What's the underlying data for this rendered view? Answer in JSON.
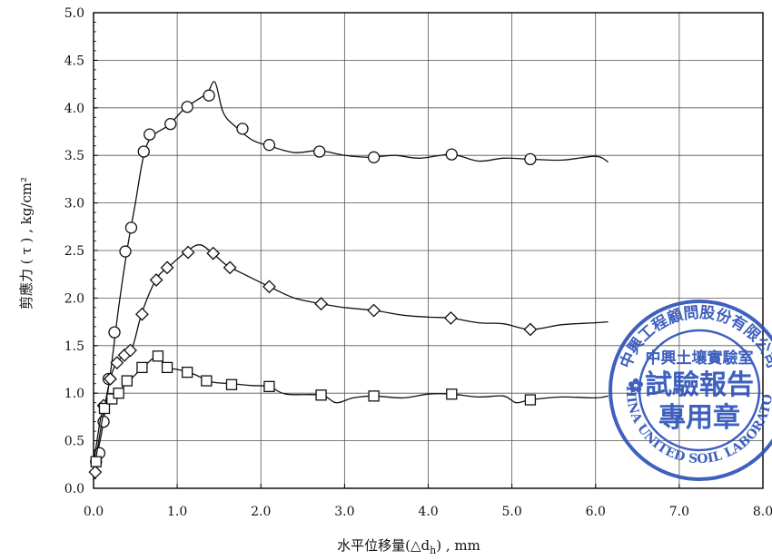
{
  "chart_data": {
    "type": "line",
    "title": "",
    "xlabel": "水平位移量(△d",
    "xlabel_sub": "h",
    "xlabel_suffix": ") , mm",
    "ylabel": "剪應力 ( τ ) ,  kg/cm²",
    "xlim": [
      0,
      8
    ],
    "ylim": [
      0,
      5
    ],
    "x_ticks": [
      "0.0",
      "1.0",
      "2.0",
      "3.0",
      "4.0",
      "5.0",
      "6.0",
      "7.0",
      "8.0"
    ],
    "y_ticks": [
      "0.0",
      "0.5",
      "1.0",
      "1.5",
      "2.0",
      "2.5",
      "3.0",
      "3.5",
      "4.0",
      "4.5",
      "5.0"
    ],
    "grid": true,
    "series": [
      {
        "marker": "circle",
        "points": [
          [
            0.03,
            0.28
          ],
          [
            0.07,
            0.37
          ],
          [
            0.12,
            0.7
          ],
          [
            0.18,
            1.15
          ],
          [
            0.25,
            1.64
          ],
          [
            0.38,
            2.49
          ],
          [
            0.45,
            2.74
          ],
          [
            0.6,
            3.54
          ],
          [
            0.67,
            3.72
          ],
          [
            0.92,
            3.83
          ],
          [
            1.12,
            4.01
          ],
          [
            1.38,
            4.13
          ],
          [
            1.78,
            3.78
          ],
          [
            2.1,
            3.61
          ],
          [
            2.7,
            3.54
          ],
          [
            3.35,
            3.48
          ],
          [
            4.28,
            3.51
          ],
          [
            5.22,
            3.46
          ]
        ],
        "curve": [
          [
            0,
            0.2
          ],
          [
            0.1,
            0.6
          ],
          [
            0.2,
            1.2
          ],
          [
            0.3,
            1.9
          ],
          [
            0.4,
            2.5
          ],
          [
            0.5,
            3.0
          ],
          [
            0.6,
            3.5
          ],
          [
            0.7,
            3.7
          ],
          [
            0.9,
            3.82
          ],
          [
            1.1,
            4.0
          ],
          [
            1.35,
            4.15
          ],
          [
            1.45,
            4.27
          ],
          [
            1.55,
            3.95
          ],
          [
            1.7,
            3.8
          ],
          [
            1.9,
            3.66
          ],
          [
            2.1,
            3.6
          ],
          [
            2.4,
            3.53
          ],
          [
            2.7,
            3.55
          ],
          [
            3.0,
            3.5
          ],
          [
            3.3,
            3.48
          ],
          [
            3.6,
            3.5
          ],
          [
            3.9,
            3.47
          ],
          [
            4.28,
            3.51
          ],
          [
            4.6,
            3.44
          ],
          [
            4.9,
            3.47
          ],
          [
            5.22,
            3.46
          ],
          [
            5.6,
            3.45
          ],
          [
            6.0,
            3.49
          ],
          [
            6.15,
            3.43
          ]
        ]
      },
      {
        "marker": "diamond",
        "points": [
          [
            0.02,
            0.17
          ],
          [
            0.12,
            0.87
          ],
          [
            0.2,
            1.15
          ],
          [
            0.28,
            1.32
          ],
          [
            0.37,
            1.4
          ],
          [
            0.44,
            1.45
          ],
          [
            0.58,
            1.83
          ],
          [
            0.75,
            2.19
          ],
          [
            0.88,
            2.32
          ],
          [
            1.13,
            2.48
          ],
          [
            1.43,
            2.47
          ],
          [
            1.63,
            2.32
          ],
          [
            2.1,
            2.12
          ],
          [
            2.72,
            1.94
          ],
          [
            3.35,
            1.87
          ],
          [
            4.27,
            1.79
          ],
          [
            5.22,
            1.67
          ]
        ],
        "curve": [
          [
            0,
            0.15
          ],
          [
            0.1,
            0.7
          ],
          [
            0.2,
            1.15
          ],
          [
            0.3,
            1.35
          ],
          [
            0.45,
            1.45
          ],
          [
            0.58,
            1.85
          ],
          [
            0.75,
            2.2
          ],
          [
            0.9,
            2.33
          ],
          [
            1.1,
            2.48
          ],
          [
            1.27,
            2.56
          ],
          [
            1.45,
            2.45
          ],
          [
            1.6,
            2.34
          ],
          [
            1.8,
            2.25
          ],
          [
            2.1,
            2.12
          ],
          [
            2.4,
            2.0
          ],
          [
            2.72,
            1.94
          ],
          [
            3.0,
            1.9
          ],
          [
            3.35,
            1.87
          ],
          [
            3.7,
            1.82
          ],
          [
            4.0,
            1.8
          ],
          [
            4.27,
            1.79
          ],
          [
            4.6,
            1.74
          ],
          [
            4.9,
            1.73
          ],
          [
            5.22,
            1.67
          ],
          [
            5.6,
            1.72
          ],
          [
            6.0,
            1.74
          ],
          [
            6.15,
            1.75
          ]
        ]
      },
      {
        "marker": "square",
        "points": [
          [
            0.03,
            0.28
          ],
          [
            0.13,
            0.84
          ],
          [
            0.22,
            0.94
          ],
          [
            0.3,
            1.0
          ],
          [
            0.4,
            1.13
          ],
          [
            0.58,
            1.27
          ],
          [
            0.77,
            1.39
          ],
          [
            0.88,
            1.27
          ],
          [
            1.12,
            1.22
          ],
          [
            1.35,
            1.13
          ],
          [
            1.65,
            1.09
          ],
          [
            2.1,
            1.07
          ],
          [
            2.72,
            0.98
          ],
          [
            3.35,
            0.97
          ],
          [
            4.28,
            0.99
          ],
          [
            5.22,
            0.93
          ]
        ],
        "curve": [
          [
            0,
            0.25
          ],
          [
            0.1,
            0.8
          ],
          [
            0.2,
            0.95
          ],
          [
            0.3,
            1.02
          ],
          [
            0.45,
            1.15
          ],
          [
            0.6,
            1.28
          ],
          [
            0.78,
            1.4
          ],
          [
            0.85,
            1.27
          ],
          [
            1.0,
            1.25
          ],
          [
            1.2,
            1.2
          ],
          [
            1.4,
            1.12
          ],
          [
            1.65,
            1.1
          ],
          [
            1.9,
            1.08
          ],
          [
            2.1,
            1.07
          ],
          [
            2.3,
            0.99
          ],
          [
            2.72,
            0.98
          ],
          [
            2.9,
            0.9
          ],
          [
            3.1,
            0.95
          ],
          [
            3.35,
            0.97
          ],
          [
            3.7,
            0.95
          ],
          [
            4.0,
            0.99
          ],
          [
            4.28,
            0.99
          ],
          [
            4.6,
            0.96
          ],
          [
            4.9,
            0.97
          ],
          [
            5.05,
            0.9
          ],
          [
            5.22,
            0.93
          ],
          [
            5.6,
            0.96
          ],
          [
            6.0,
            0.95
          ],
          [
            6.15,
            0.97
          ]
        ]
      }
    ]
  },
  "stamp": {
    "outer_text": "中興工程顧問股份有限公司",
    "lab_text": "中興土壤實驗室",
    "line1": "試驗報告",
    "line2": "專用章",
    "english_text": "CHINA UNITED SOIL LABORATORY",
    "color": "#2a4fb8"
  }
}
